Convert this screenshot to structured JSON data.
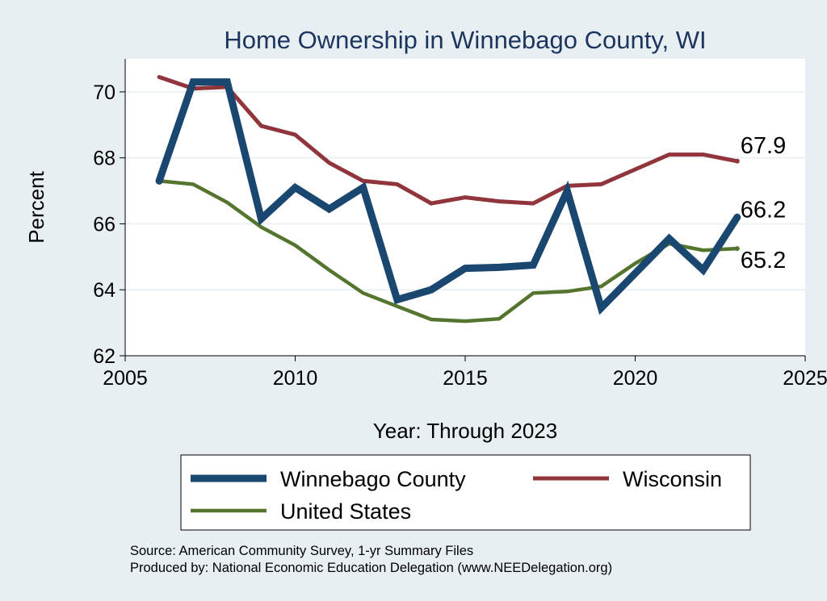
{
  "chart_data": {
    "type": "line",
    "title": "Home Ownership in Winnebago County, WI",
    "xlabel": "Year: Through 2023",
    "ylabel": "Percent",
    "xlim": [
      2005,
      2025
    ],
    "ylim": [
      62,
      71
    ],
    "xticks": [
      2005,
      2010,
      2015,
      2020,
      2025
    ],
    "yticks": [
      62,
      64,
      66,
      68,
      70
    ],
    "grid": "horizontal",
    "legend_placement": "bottom",
    "x": [
      2006,
      2007,
      2008,
      2009,
      2010,
      2011,
      2012,
      2013,
      2014,
      2015,
      2016,
      2017,
      2018,
      2019,
      2020,
      2021,
      2022,
      2023
    ],
    "series": [
      {
        "name": "Winnebago County",
        "color": "#1a476f",
        "values": [
          67.3,
          70.3,
          70.3,
          66.15,
          67.1,
          66.45,
          67.1,
          63.7,
          64.0,
          64.65,
          64.68,
          64.75,
          67.0,
          63.45,
          64.5,
          65.55,
          64.6,
          66.2
        ],
        "end_label": "66.2"
      },
      {
        "name": "Wisconsin",
        "color": "#90353b",
        "values": [
          70.45,
          70.1,
          70.15,
          68.97,
          68.7,
          67.85,
          67.3,
          67.2,
          66.62,
          66.8,
          66.68,
          66.62,
          67.15,
          67.2,
          67.65,
          68.1,
          68.1,
          67.9
        ],
        "end_label": "67.9"
      },
      {
        "name": "United States",
        "color": "#55752f",
        "values": [
          67.3,
          67.2,
          66.65,
          65.9,
          65.35,
          64.6,
          63.9,
          63.5,
          63.1,
          63.05,
          63.12,
          63.9,
          63.95,
          64.1,
          64.8,
          65.4,
          65.2,
          65.25
        ],
        "end_label": "65.2"
      }
    ]
  },
  "notes": {
    "source": "Source: American Community Survey, 1-yr Summary Files",
    "produced_by": "Produced by: National Economic Education Delegation (www.NEEDelegation.org)"
  }
}
